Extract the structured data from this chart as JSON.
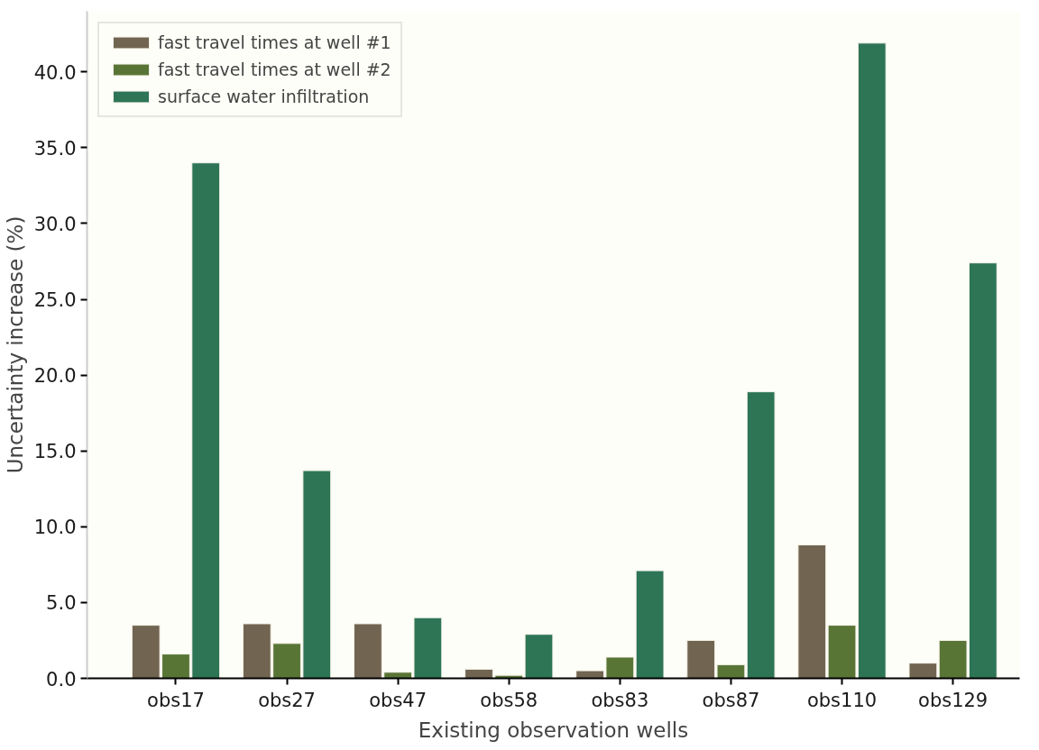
{
  "chart_data": {
    "type": "bar",
    "xlabel": "Existing observation wells",
    "ylabel": "Uncertainty increase (%)",
    "categories": [
      "obs17",
      "obs27",
      "obs47",
      "obs58",
      "obs83",
      "obs87",
      "obs110",
      "obs129"
    ],
    "series": [
      {
        "name": "fast travel times at well #1",
        "color": "#716451",
        "values": [
          3.5,
          3.6,
          3.6,
          0.6,
          0.5,
          2.5,
          8.8,
          1.0
        ]
      },
      {
        "name": "fast travel times at well #2",
        "color": "#587536",
        "values": [
          1.6,
          2.3,
          0.4,
          0.2,
          1.4,
          0.9,
          3.5,
          2.5
        ]
      },
      {
        "name": "surface water infiltration",
        "color": "#2d7555",
        "values": [
          34.0,
          13.7,
          4.0,
          2.9,
          7.1,
          18.9,
          41.9,
          27.4
        ]
      }
    ],
    "ylim": [
      0,
      44
    ],
    "yticks": [
      {
        "value": 0,
        "label": "0.0"
      },
      {
        "value": 5,
        "label": "5.0"
      },
      {
        "value": 10,
        "label": "10.0"
      },
      {
        "value": 15,
        "label": "15.0"
      },
      {
        "value": 20,
        "label": "20.0"
      },
      {
        "value": 25,
        "label": "25.0"
      },
      {
        "value": 30,
        "label": "30.0"
      },
      {
        "value": 35,
        "label": "35.0"
      },
      {
        "value": 40,
        "label": "40.0"
      }
    ],
    "grid": false,
    "legend": "top left"
  }
}
